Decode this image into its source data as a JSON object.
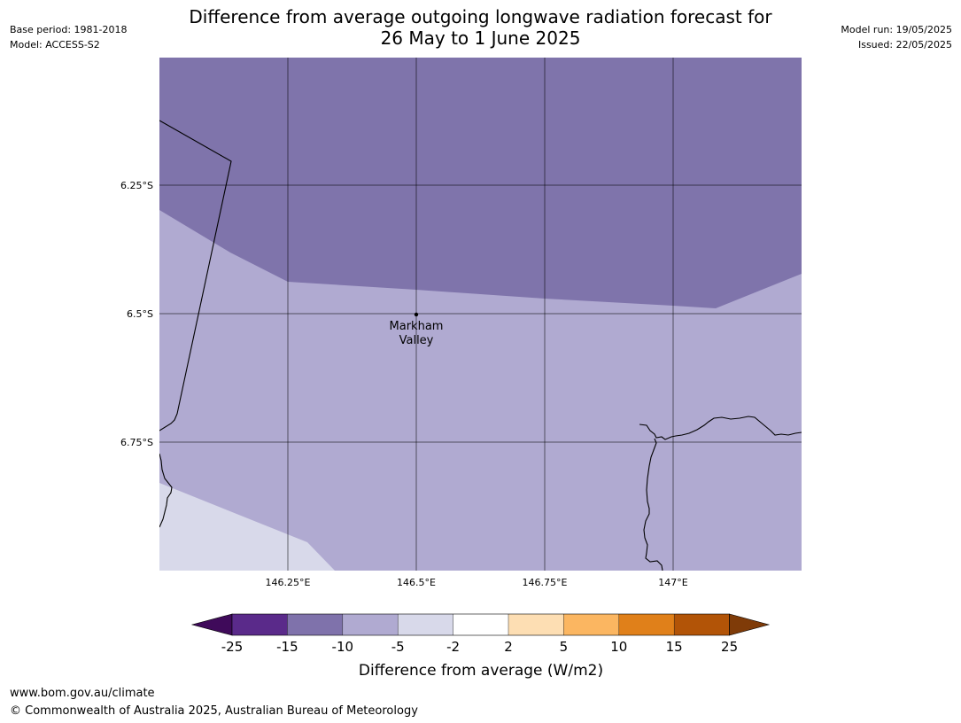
{
  "meta": {
    "base_period": "Base period: 1981-2018",
    "model": "Model: ACCESS-S2",
    "model_run": "Model run: 19/05/2025",
    "issued": "Issued: 22/05/2025"
  },
  "title": {
    "line1": "Difference from average outgoing longwave radiation forecast for",
    "line2": "26 May to 1 June 2025"
  },
  "map": {
    "latitude_labels": [
      "6.25°S",
      "6.5°S",
      "6.75°S"
    ],
    "longitude_labels": [
      "146.25°E",
      "146.5°E",
      "146.75°E",
      "147°E"
    ],
    "place": {
      "line1": "Markham",
      "line2": "Valley"
    },
    "extent": {
      "lon_min": 146.0,
      "lon_max": 147.25,
      "lat_min": -7.0,
      "lat_max": -6.0
    }
  },
  "legend": {
    "title": "Difference from average (W/m2)",
    "ticks": [
      "-25",
      "-15",
      "-10",
      "-5",
      "-2",
      "2",
      "5",
      "10",
      "15",
      "25"
    ],
    "colors": [
      "#3f0a5a",
      "#5a2a8a",
      "#7f72ab",
      "#b0aad1",
      "#d8d9ea",
      "#ffffff",
      "#fddeb3",
      "#fbb661",
      "#e0801a",
      "#b25407",
      "#7f3b08"
    ]
  },
  "footer": {
    "url": "www.bom.gov.au/climate",
    "copyright": "© Commonwealth of Australia 2025, Australian Bureau of Meteorology"
  }
}
